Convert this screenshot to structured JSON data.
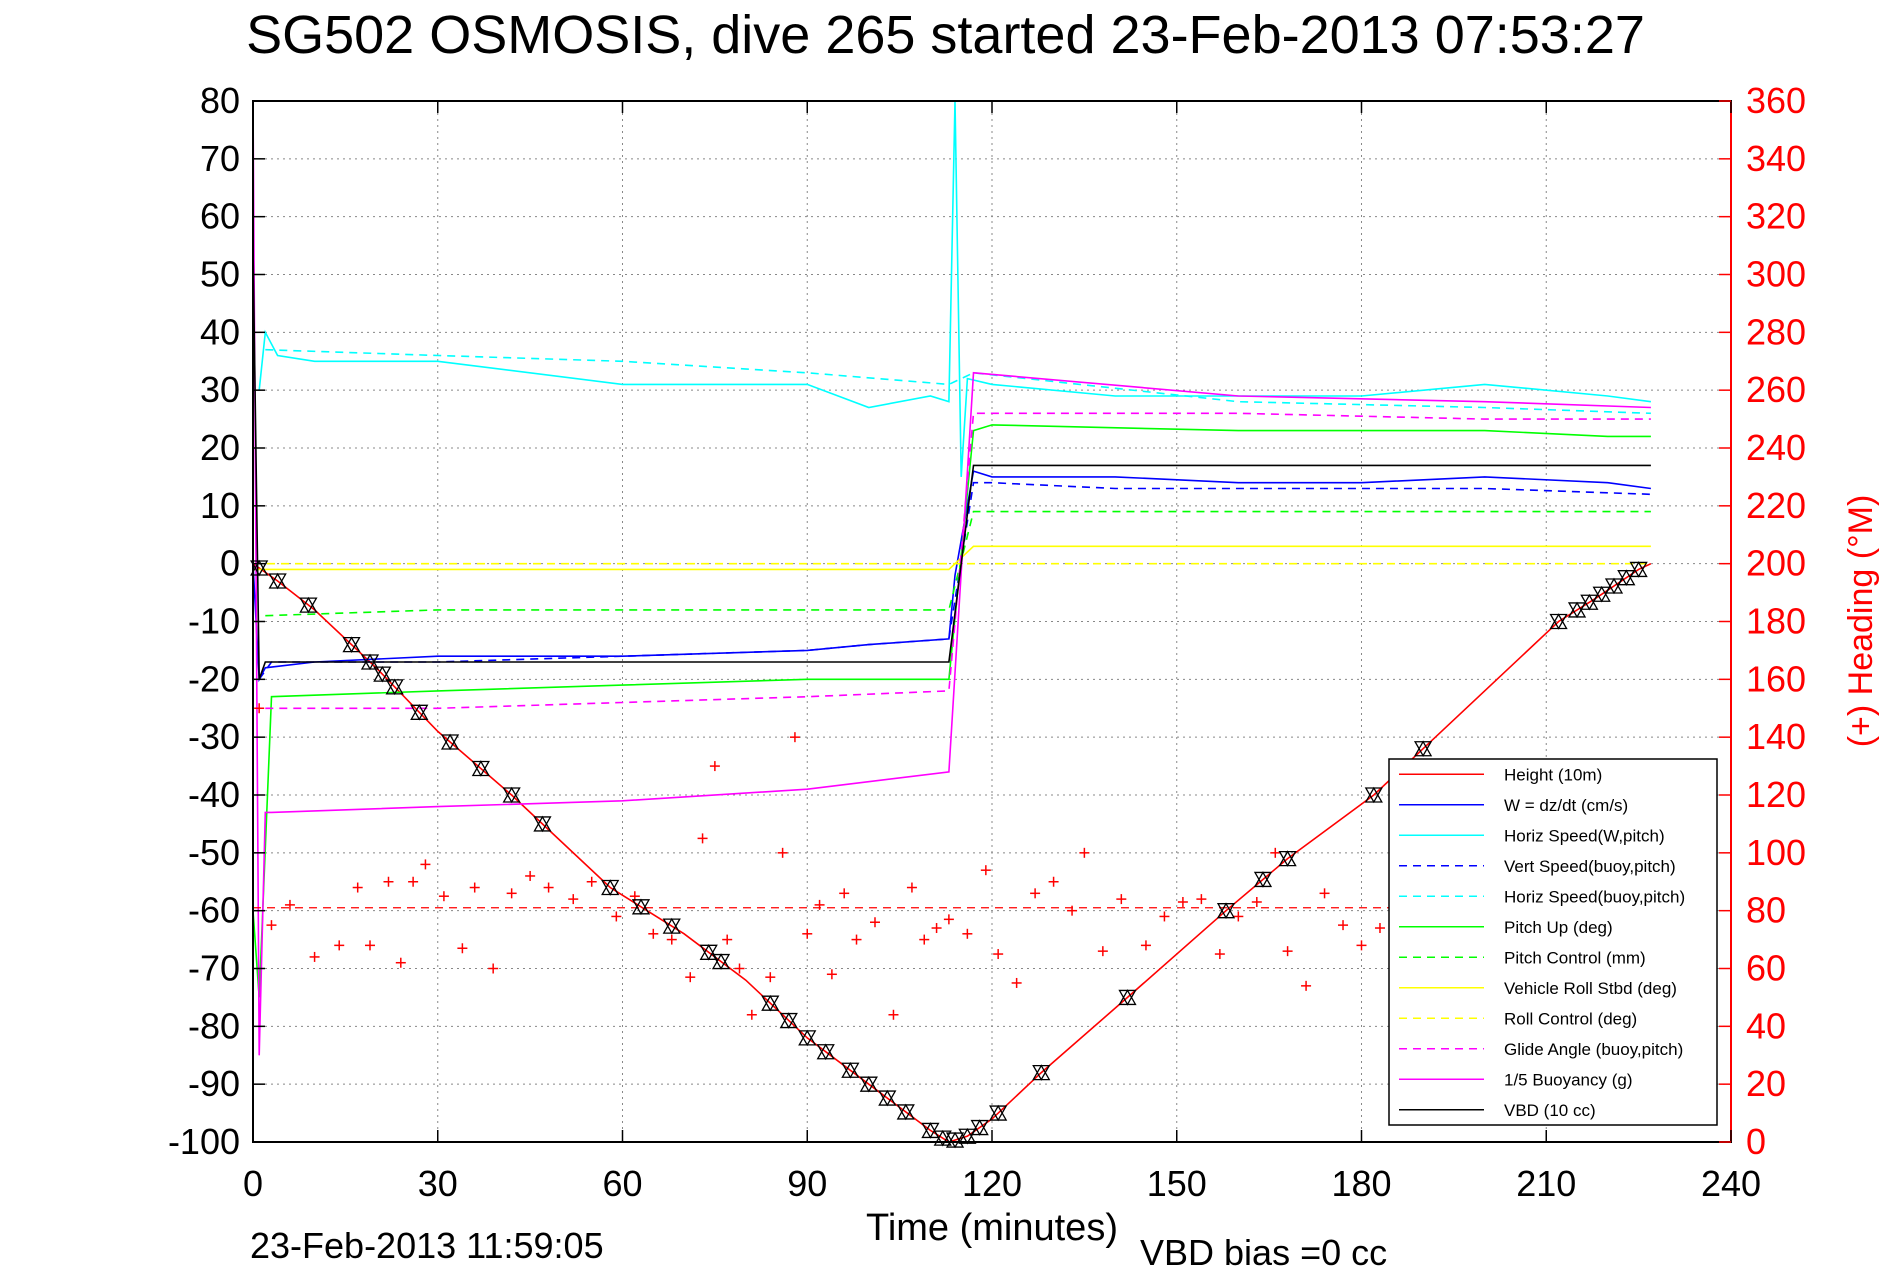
{
  "chart_data": {
    "type": "line",
    "title": "SG502 OSMOSIS, dive 265 started 23-Feb-2013 07:53:27",
    "xlabel": "Time (minutes)",
    "ylabel_right": "(+) Heading (°M)",
    "xlim": [
      0,
      240
    ],
    "ylim": [
      -100,
      80
    ],
    "ylim_right": [
      0,
      360
    ],
    "x_ticks": [
      "0",
      "30",
      "60",
      "90",
      "120",
      "150",
      "180",
      "210",
      "240"
    ],
    "y_ticks": [
      "80",
      "70",
      "60",
      "50",
      "40",
      "30",
      "20",
      "10",
      "0",
      "-10",
      "-20",
      "-30",
      "-40",
      "-50",
      "-60",
      "-70",
      "-80",
      "-90",
      "-100"
    ],
    "y_ticks_right": [
      "360",
      "340",
      "320",
      "300",
      "280",
      "260",
      "240",
      "220",
      "200",
      "180",
      "160",
      "140",
      "120",
      "100",
      "80",
      "60",
      "40",
      "20",
      "0"
    ],
    "grid": true,
    "legend_position": "bottom-right",
    "footer_left": "23-Feb-2013 11:59:05",
    "footer_right": "VBD bias =0 cc",
    "series": [
      {
        "name": "Height (10m)",
        "color": "#ff0000",
        "style": "solid",
        "x": [
          0,
          4,
          10,
          20,
          30,
          42,
          58,
          64,
          70,
          80,
          90,
          100,
          110,
          113,
          116,
          120,
          128,
          142,
          158,
          168,
          182,
          190,
          212,
          218,
          225,
          227
        ],
        "y": [
          0,
          -3,
          -8,
          -18,
          -29,
          -40,
          -56,
          -60,
          -64,
          -72,
          -82,
          -90,
          -98,
          -100,
          -99,
          -96,
          -88,
          -75,
          -60,
          -51,
          -40,
          -32,
          -10,
          -6,
          -1,
          0
        ]
      },
      {
        "name": "W = dz/dt (cm/s)",
        "color": "#0000ff",
        "style": "solid",
        "x": [
          0,
          1,
          2,
          10,
          30,
          60,
          90,
          100,
          113,
          114,
          117,
          120,
          140,
          160,
          180,
          200,
          220,
          227
        ],
        "y": [
          0,
          -20,
          -18,
          -17,
          -16,
          -16,
          -15,
          -14,
          -13,
          -2,
          16,
          15,
          15,
          14,
          14,
          15,
          14,
          13
        ]
      },
      {
        "name": "Horiz Speed(W,pitch)",
        "color": "#00ffff",
        "style": "solid",
        "x": [
          1,
          2,
          4,
          10,
          30,
          60,
          90,
          100,
          110,
          113,
          114,
          115,
          116,
          120,
          140,
          160,
          180,
          200,
          220,
          227
        ],
        "y": [
          30,
          40,
          36,
          35,
          35,
          31,
          31,
          27,
          29,
          28,
          80,
          15,
          32,
          31,
          29,
          29,
          29,
          31,
          29,
          28
        ]
      },
      {
        "name": "Vert Speed(buoy,pitch)",
        "color": "#0000ff",
        "style": "dashed",
        "x": [
          1,
          3,
          30,
          60,
          90,
          100,
          113,
          117,
          120,
          140,
          160,
          180,
          200,
          227
        ],
        "y": [
          -20,
          -17,
          -17,
          -16,
          -15,
          -14,
          -13,
          14,
          14,
          13,
          13,
          13,
          13,
          12
        ]
      },
      {
        "name": "Horiz Speed(buoy,pitch)",
        "color": "#00ffff",
        "style": "dashed",
        "x": [
          2,
          30,
          60,
          90,
          113,
          117,
          160,
          200,
          227
        ],
        "y": [
          37,
          36,
          35,
          33,
          31,
          33,
          28,
          27,
          26
        ]
      },
      {
        "name": "Pitch Up (deg)",
        "color": "#00ff00",
        "style": "solid",
        "x": [
          0,
          1,
          3,
          30,
          60,
          90,
          113,
          117,
          120,
          160,
          200,
          220,
          227
        ],
        "y": [
          -60,
          -75,
          -23,
          -22,
          -21,
          -20,
          -20,
          23,
          24,
          23,
          23,
          22,
          22
        ]
      },
      {
        "name": "Pitch Control (mm)",
        "color": "#00ff00",
        "style": "dashed",
        "x": [
          2,
          30,
          60,
          90,
          113,
          117,
          227
        ],
        "y": [
          -9,
          -8,
          -8,
          -8,
          -8,
          9,
          9
        ]
      },
      {
        "name": "Vehicle Roll Stbd (deg)",
        "color": "#ffff00",
        "style": "solid",
        "x": [
          0,
          10,
          30,
          60,
          90,
          113,
          117,
          140,
          180,
          210,
          227
        ],
        "y": [
          -1,
          -1,
          -1,
          -1,
          -1,
          -1,
          3,
          3,
          3,
          3,
          3
        ]
      },
      {
        "name": "Roll Control (deg)",
        "color": "#ffff00",
        "style": "dashed",
        "x": [
          0,
          30,
          60,
          90,
          113,
          117,
          227
        ],
        "y": [
          0,
          0,
          0,
          0,
          0,
          0,
          0
        ]
      },
      {
        "name": "Glide Angle (buoy,pitch)",
        "color": "#ff00ff",
        "style": "dashed",
        "x": [
          2,
          30,
          60,
          90,
          113,
          117,
          160,
          200,
          227
        ],
        "y": [
          -25,
          -25,
          -24,
          -23,
          -22,
          26,
          26,
          25,
          25
        ]
      },
      {
        "name": "1/5 Buoyancy (g)",
        "color": "#ff00ff",
        "style": "solid",
        "x": [
          0,
          1,
          2,
          3,
          30,
          60,
          90,
          113,
          117,
          160,
          200,
          227
        ],
        "y": [
          80,
          -85,
          -43,
          -43,
          -42,
          -41,
          -39,
          -36,
          33,
          29,
          28,
          27
        ]
      },
      {
        "name": "VBD (10 cc)",
        "color": "#000000",
        "style": "solid",
        "x": [
          0,
          1,
          2,
          30,
          60,
          90,
          113,
          117,
          120,
          160,
          200,
          227
        ],
        "y": [
          55,
          -20,
          -17,
          -17,
          -17,
          -17,
          -17,
          17,
          17,
          17,
          17,
          17
        ]
      }
    ],
    "heading_series": {
      "name": "(+) Heading",
      "color": "#ff0000",
      "marker": "+",
      "reference_line_deg": 81,
      "x": [
        1,
        3,
        6,
        10,
        14,
        17,
        19,
        22,
        24,
        26,
        28,
        31,
        34,
        36,
        39,
        42,
        45,
        48,
        52,
        55,
        59,
        62,
        65,
        68,
        71,
        73,
        75,
        77,
        79,
        81,
        84,
        86,
        88,
        90,
        92,
        94,
        96,
        98,
        101,
        104,
        107,
        109,
        111,
        113,
        116,
        119,
        121,
        124,
        127,
        130,
        133,
        135,
        138,
        141,
        145,
        148,
        151,
        154,
        157,
        160,
        163,
        166,
        168,
        171,
        174,
        177,
        180,
        183,
        186,
        189,
        192,
        195
      ],
      "y": [
        150,
        75,
        82,
        64,
        68,
        88,
        68,
        90,
        62,
        90,
        96,
        85,
        67,
        88,
        60,
        86,
        92,
        88,
        84,
        90,
        78,
        85,
        72,
        70,
        57,
        105,
        130,
        70,
        60,
        44,
        57,
        100,
        140,
        72,
        82,
        58,
        86,
        70,
        76,
        44,
        88,
        70,
        74,
        77,
        72,
        94,
        65,
        55,
        86,
        90,
        80,
        100,
        66,
        84,
        68,
        78,
        83,
        84,
        65,
        78,
        83,
        100,
        66,
        54,
        86,
        75,
        68,
        74,
        62,
        83,
        80,
        88
      ]
    },
    "markers_on_height": {
      "symbol": "bowtie-triangle",
      "color": "#000000",
      "x": [
        1,
        4,
        9,
        16,
        19,
        21,
        23,
        27,
        32,
        37,
        42,
        47,
        58,
        63,
        68,
        74,
        76,
        84,
        87,
        90,
        93,
        97,
        100,
        103,
        106,
        110,
        112,
        114,
        116,
        118,
        121,
        128,
        142,
        158,
        164,
        168,
        182,
        190,
        212,
        215,
        217,
        219,
        221,
        223,
        225
      ]
    }
  }
}
